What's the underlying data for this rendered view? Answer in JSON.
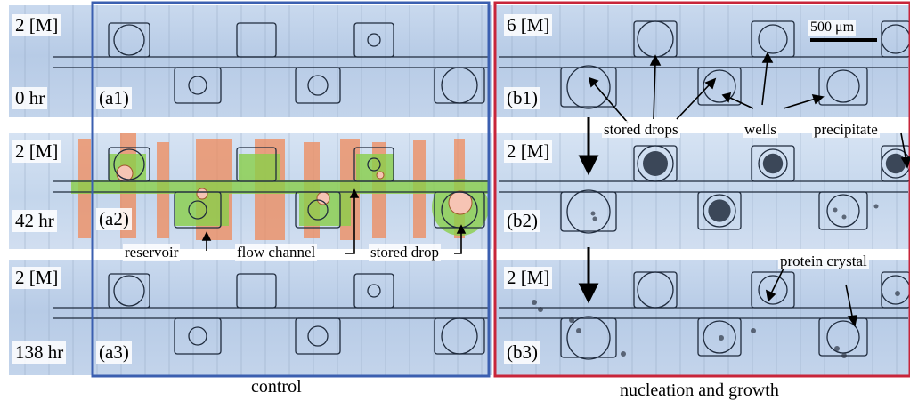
{
  "colors": {
    "control_frame": "#3b5fb0",
    "nucleation_frame": "#c8253a",
    "flow_overlay": "#8ad04a",
    "reservoir_overlay": "#f08a5a",
    "drop_overlay": "#f6c4b4"
  },
  "rows": [
    {
      "id": "row1",
      "concentration_left": "2 [M]",
      "time": "0 hr",
      "label_left": "(a1)",
      "concentration_right": "6 [M]",
      "label_right": "(b1)"
    },
    {
      "id": "row2",
      "concentration_left": "2 [M]",
      "time": "42 hr",
      "label_left": "(a2)",
      "concentration_right": "2 [M]",
      "label_right": "(b2)"
    },
    {
      "id": "row3",
      "concentration_left": "2 [M]",
      "time": "138 hr",
      "label_left": "(a3)",
      "concentration_right": "2 [M]",
      "label_right": "(b3)"
    }
  ],
  "scale_bar": "500 μm",
  "annotations": {
    "stored_drops": "stored drops",
    "wells": "wells",
    "precipitate": "precipitate",
    "reservoir": "reservoir",
    "flow_channel": "flow channel",
    "stored_drop": "stored drop",
    "protein_crystal": "protein crystal"
  },
  "captions": {
    "control": "control",
    "nucleation": "nucleation and growth"
  }
}
